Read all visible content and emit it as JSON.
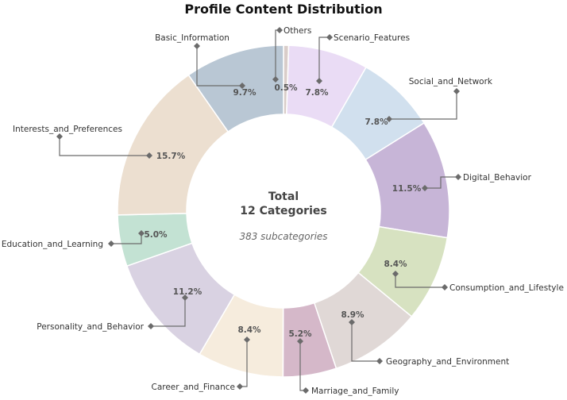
{
  "chart_data": {
    "type": "pie",
    "variant": "donut",
    "title": "Profile Content Distribution",
    "center_text": {
      "line1": "Total",
      "line2": "12 Categories",
      "subtitle": "383 subcategories"
    },
    "start": "12 o'clock",
    "direction": "clockwise",
    "slices": [
      {
        "label": "Others",
        "value": 0.5,
        "pct_label": "0.5%",
        "color": "#d9cdc9"
      },
      {
        "label": "Scenario_Features",
        "value": 7.8,
        "pct_label": "7.8%",
        "color": "#eadcf5"
      },
      {
        "label": "Social_and_Network",
        "value": 7.8,
        "pct_label": "7.8%",
        "color": "#d1e0ee"
      },
      {
        "label": "Digital_Behavior",
        "value": 11.5,
        "pct_label": "11.5%",
        "color": "#c7b5d7"
      },
      {
        "label": "Consumption_and_Lifestyle",
        "value": 8.4,
        "pct_label": "8.4%",
        "color": "#d7e2c1"
      },
      {
        "label": "Geography_and_Environment",
        "value": 8.9,
        "pct_label": "8.9%",
        "color": "#e0d8d6"
      },
      {
        "label": "Marriage_and_Family",
        "value": 5.2,
        "pct_label": "5.2%",
        "color": "#d5b8c9"
      },
      {
        "label": "Career_and_Finance",
        "value": 8.4,
        "pct_label": "8.4%",
        "color": "#f6ecdd"
      },
      {
        "label": "Personality_and_Behavior",
        "value": 11.2,
        "pct_label": "11.2%",
        "color": "#d9d2e2"
      },
      {
        "label": "Education_and_Learning",
        "value": 5.0,
        "pct_label": "5.0%",
        "color": "#c3e2d3"
      },
      {
        "label": "Interests_and_Preferences",
        "value": 15.7,
        "pct_label": "15.7%",
        "color": "#ecdfd0"
      },
      {
        "label": "Basic_Information",
        "value": 9.7,
        "pct_label": "9.7%",
        "color": "#b9c7d4"
      }
    ]
  }
}
